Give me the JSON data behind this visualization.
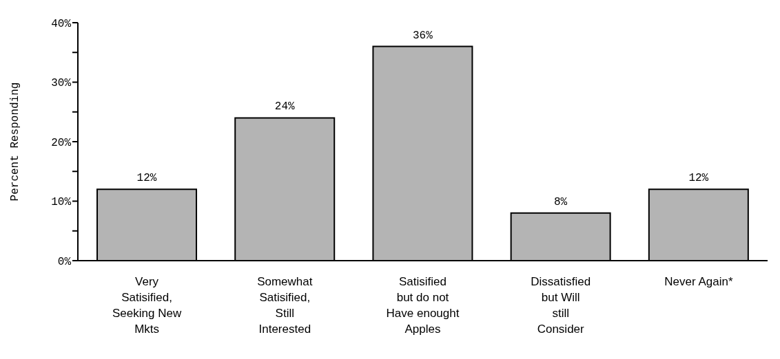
{
  "chart_data": {
    "type": "bar",
    "ylabel": "Percent Responding",
    "categories": [
      "Very Satisified, Seeking New Mkts",
      "Somewhat Satisified, Still Interested",
      "Satisified but do not Have enought Apples",
      "Dissatisfied but Will still Consider",
      "Never Again*"
    ],
    "values": [
      12,
      24,
      36,
      8,
      12
    ],
    "color": "#b4b4b4",
    "value_labels": [
      "12%",
      "24%",
      "36%",
      "8%",
      "12%"
    ],
    "ylim": [
      0,
      40
    ],
    "yticks": [
      {
        "value": 0,
        "label": "0%"
      },
      {
        "value": 5,
        "label": null
      },
      {
        "value": 10,
        "label": "10%"
      },
      {
        "value": 15,
        "label": null
      },
      {
        "value": 20,
        "label": "20%"
      },
      {
        "value": 25,
        "label": null
      },
      {
        "value": 30,
        "label": "30%"
      },
      {
        "value": 35,
        "label": null
      },
      {
        "value": 40,
        "label": "40%"
      }
    ],
    "grid": false,
    "legend": false
  }
}
